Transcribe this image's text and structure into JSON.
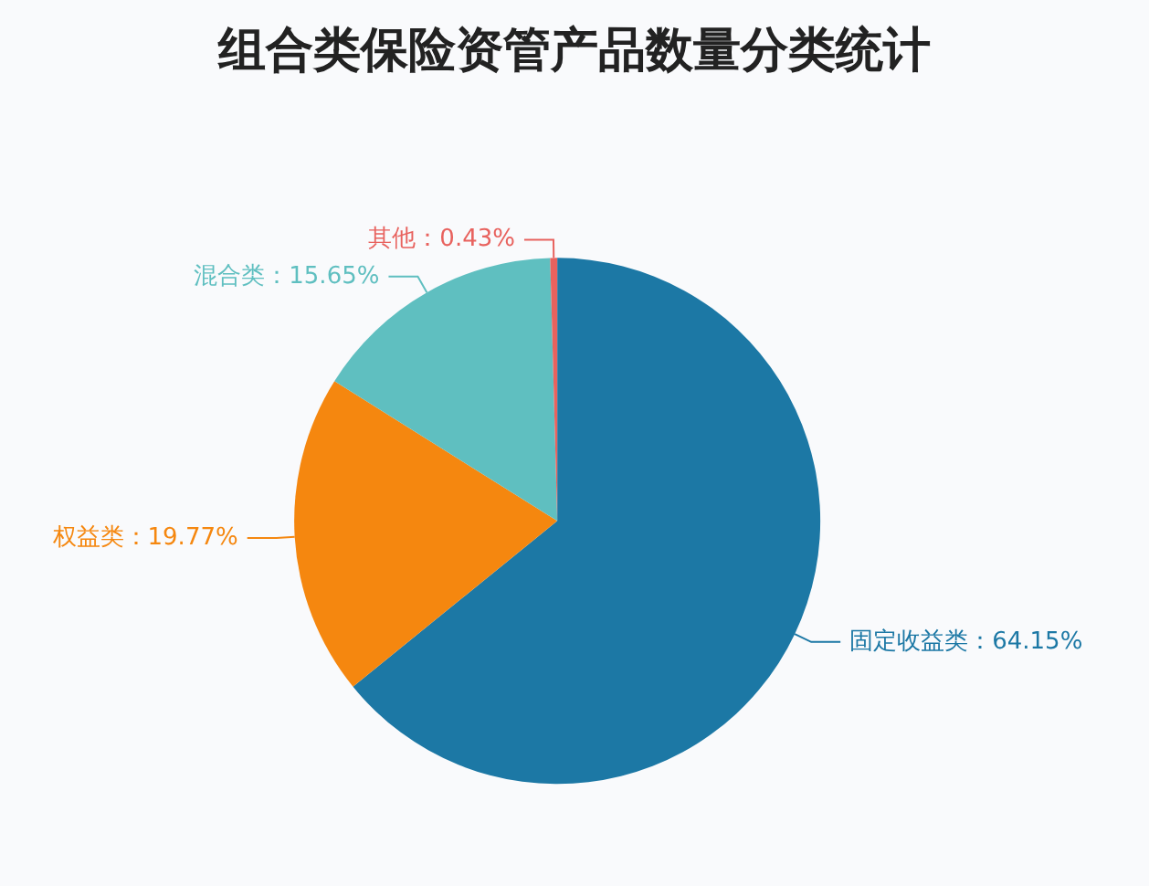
{
  "chart_data": {
    "type": "pie",
    "title": "组合类保险资管产品数量分类统计",
    "categories": [
      "固定收益类",
      "权益类",
      "混合类",
      "其他"
    ],
    "values": [
      64.15,
      19.77,
      15.65,
      0.43
    ],
    "colors": [
      "#1c78a5",
      "#f5870f",
      "#5fbfc0",
      "#e8625e"
    ],
    "value_labels": [
      "64.15%",
      "19.77%",
      "15.65%",
      "0.43%"
    ],
    "legend": false
  }
}
